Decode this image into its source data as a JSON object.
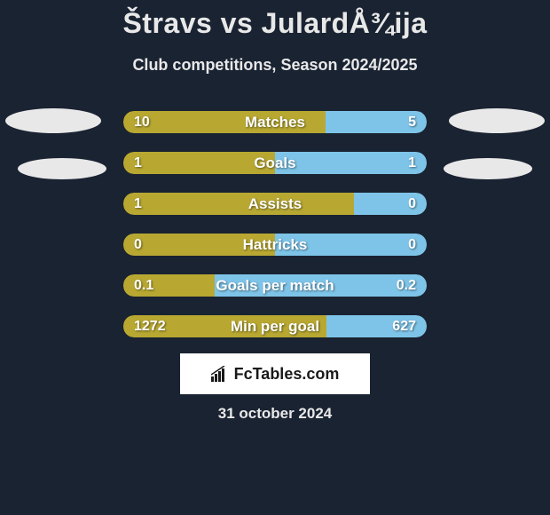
{
  "title": "Štravs vs JulardÅ¾ija",
  "subtitle": "Club competitions, Season 2024/2025",
  "date": "31 october 2024",
  "logo_text": "FcTables.com",
  "colors": {
    "background": "#1a2332",
    "left_bar": "#b8a832",
    "right_bar": "#7ec4e8",
    "ellipse": "#e8e8e8",
    "text": "#e8e8e8"
  },
  "stats": [
    {
      "label": "Matches",
      "left_value": "10",
      "right_value": "5",
      "left_pct": 66.7,
      "right_pct": 33.3
    },
    {
      "label": "Goals",
      "left_value": "1",
      "right_value": "1",
      "left_pct": 50,
      "right_pct": 50
    },
    {
      "label": "Assists",
      "left_value": "1",
      "right_value": "0",
      "left_pct": 76,
      "right_pct": 24
    },
    {
      "label": "Hattricks",
      "left_value": "0",
      "right_value": "0",
      "left_pct": 50,
      "right_pct": 50
    },
    {
      "label": "Goals per match",
      "left_value": "0.1",
      "right_value": "0.2",
      "left_pct": 30,
      "right_pct": 70
    },
    {
      "label": "Min per goal",
      "left_value": "1272",
      "right_value": "627",
      "left_pct": 67,
      "right_pct": 33
    }
  ]
}
